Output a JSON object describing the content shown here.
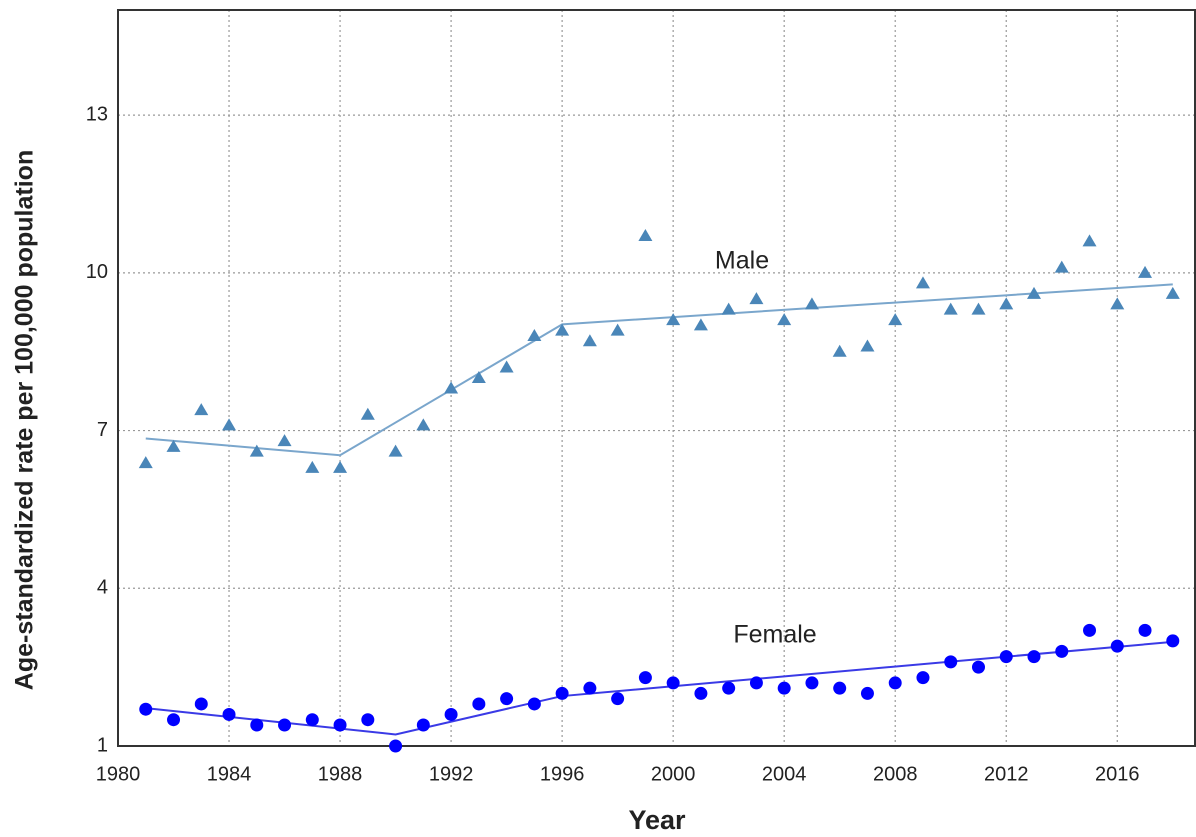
{
  "chart_data": {
    "type": "scatter",
    "x_label": "Year",
    "y_label": "Age-standardized rate per 100,000 population",
    "x": [
      1981,
      1982,
      1983,
      1984,
      1985,
      1986,
      1987,
      1988,
      1989,
      1990,
      1991,
      1992,
      1993,
      1994,
      1995,
      1996,
      1997,
      1998,
      1999,
      2000,
      2001,
      2002,
      2003,
      2004,
      2005,
      2006,
      2007,
      2008,
      2009,
      2010,
      2011,
      2012,
      2013,
      2014,
      2015,
      2016,
      2017,
      2018
    ],
    "series": [
      {
        "name": "Male",
        "color": "#4a86b8",
        "marker": "triangle",
        "values": [
          6.38,
          6.69,
          7.39,
          7.1,
          6.6,
          6.8,
          6.29,
          6.29,
          7.3,
          6.6,
          7.1,
          7.8,
          8.0,
          8.2,
          8.8,
          8.9,
          8.7,
          8.9,
          10.7,
          9.1,
          9.0,
          9.3,
          9.5,
          9.1,
          9.4,
          8.5,
          8.6,
          9.1,
          9.8,
          9.3,
          9.3,
          9.4,
          9.6,
          10.1,
          10.6,
          9.4,
          10.0,
          9.6
        ]
      },
      {
        "name": "Female",
        "color": "#0000ff",
        "marker": "circle",
        "values": [
          1.7,
          1.5,
          1.8,
          1.6,
          1.4,
          1.4,
          1.5,
          1.4,
          1.5,
          1.0,
          1.4,
          1.6,
          1.8,
          1.9,
          1.8,
          2.0,
          2.1,
          1.9,
          2.3,
          2.2,
          2.0,
          2.1,
          2.2,
          2.1,
          2.2,
          2.1,
          2.0,
          2.2,
          2.3,
          2.6,
          2.5,
          2.7,
          2.7,
          2.8,
          3.2,
          2.9,
          3.2,
          3.0
        ]
      }
    ],
    "fits": [
      {
        "color": "#7aa6cc",
        "x": [
          1981,
          1988,
          1996,
          2018
        ],
        "values": [
          6.85,
          6.53,
          9.02,
          9.78
        ]
      },
      {
        "color": "#3a3ae6",
        "x": [
          1981,
          1990,
          1996,
          2018
        ],
        "values": [
          1.72,
          1.22,
          1.95,
          2.98
        ]
      }
    ],
    "xlim": [
      1980,
      2018.8
    ],
    "ylim": [
      1,
      15
    ],
    "xticks": [
      1980,
      1984,
      1988,
      1992,
      1996,
      2000,
      2004,
      2008,
      2012,
      2016
    ],
    "yticks": [
      1,
      4,
      7,
      10,
      13
    ],
    "grid": true
  }
}
